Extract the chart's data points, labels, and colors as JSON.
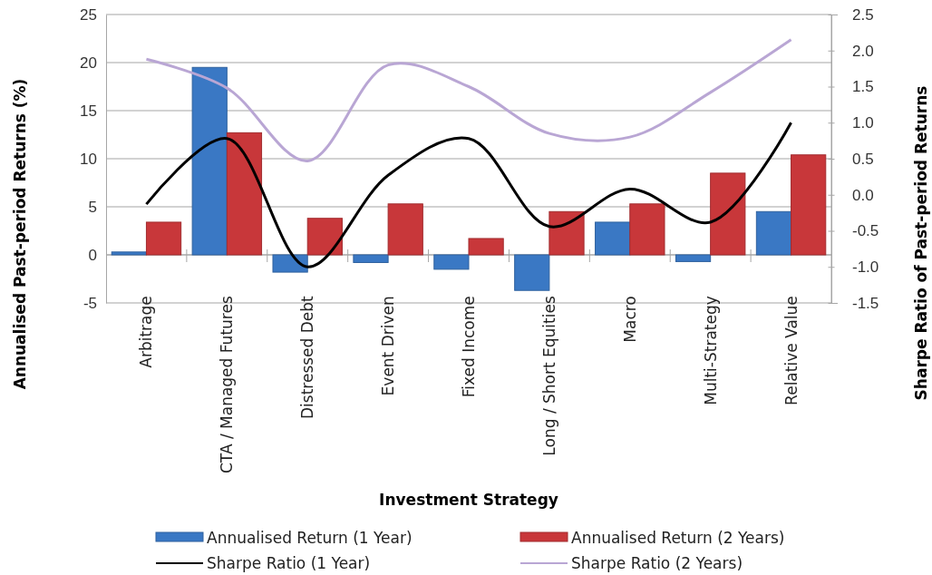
{
  "chart_data": {
    "type": "bar",
    "xlabel": "Investment Strategy",
    "ylabel": "Annualised Past-period Returns (%)",
    "y2label": "Sharpe Ratio of Past-period Returns",
    "categories": [
      "Arbitrage",
      "CTA / Managed Futures",
      "Distressed Debt",
      "Event Driven",
      "Fixed Income",
      "Long / Short Equities",
      "Macro",
      "Multi-Strategy",
      "Relative Value"
    ],
    "series": [
      {
        "name": "Annualised Return (1 Year)",
        "color": "#3a78c4",
        "values": [
          0.3,
          19.5,
          -1.8,
          -0.8,
          -1.5,
          -3.7,
          3.4,
          -0.7,
          4.5
        ]
      },
      {
        "name": "Annualised Return (2 Years)",
        "color": "#c8373a",
        "values": [
          3.4,
          12.7,
          3.8,
          5.3,
          1.7,
          4.5,
          5.3,
          8.5,
          10.4
        ]
      },
      {
        "name": "Sharpe Ratio (1 Year)",
        "type": "line",
        "axis": "y2",
        "color": "#000000",
        "values": [
          -0.13,
          0.78,
          -1.0,
          0.27,
          0.78,
          -0.44,
          0.08,
          -0.38,
          1.0
        ]
      },
      {
        "name": "Sharpe Ratio (2 Years)",
        "type": "line",
        "axis": "y2",
        "color": "#b9a6d4",
        "values": [
          1.88,
          1.48,
          0.47,
          1.8,
          1.5,
          0.85,
          0.8,
          1.42,
          2.15
        ]
      }
    ],
    "ylim": [
      -5,
      25
    ],
    "yticks": [
      -5,
      0,
      5,
      10,
      15,
      20,
      25
    ],
    "y2lim": [
      -1.5,
      2.5
    ],
    "y2ticks": [
      {
        "value": -1.5,
        "label": "-1.5"
      },
      {
        "value": -1,
        "label": "-1.0"
      },
      {
        "value": -0.5,
        "label": "-0.5"
      },
      {
        "value": 0,
        "label": "0.0"
      },
      {
        "value": 0.5,
        "label": "0.5"
      },
      {
        "value": 1,
        "label": "1.0"
      },
      {
        "value": 1.5,
        "label": "1.5"
      },
      {
        "value": 2,
        "label": "2.0"
      },
      {
        "value": 2.5,
        "label": "2.5"
      }
    ],
    "grid": "y",
    "legend": "bottom",
    "marker": "none",
    "line_style": "solid"
  }
}
